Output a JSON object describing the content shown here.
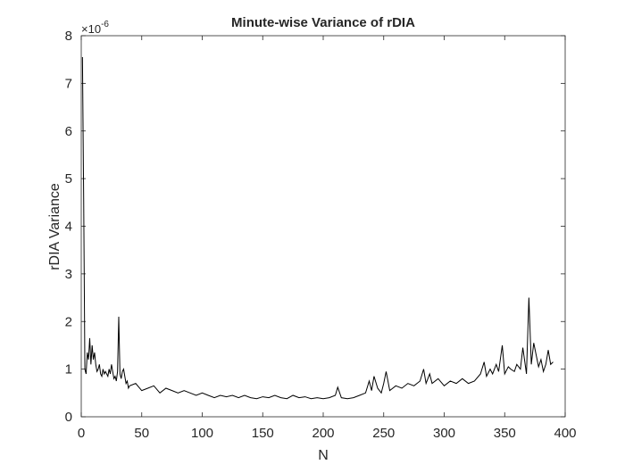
{
  "chart_data": {
    "type": "line",
    "title": "Minute-wise Variance of rDIA",
    "xlabel": "N",
    "ylabel": "rDIA Variance",
    "y_exponent_label": "×10",
    "y_exponent_power": "-6",
    "xlim": [
      0,
      400
    ],
    "ylim": [
      0,
      8
    ],
    "xticks": [
      0,
      50,
      100,
      150,
      200,
      250,
      300,
      350,
      400
    ],
    "yticks": [
      0,
      1,
      2,
      3,
      4,
      5,
      6,
      7,
      8
    ],
    "grid": false,
    "legend": "none",
    "line_color": "#000000",
    "series": [
      {
        "x": [
          1,
          2,
          3,
          4,
          5,
          6,
          7,
          8,
          9,
          10,
          11,
          12,
          13,
          14,
          15,
          16,
          17,
          18,
          19,
          20,
          21,
          22,
          23,
          24,
          25,
          26,
          27,
          28,
          29,
          30,
          31,
          32,
          33,
          34,
          35,
          36,
          37,
          38,
          39,
          40,
          45,
          50,
          55,
          60,
          65,
          70,
          75,
          80,
          85,
          90,
          95,
          100,
          105,
          110,
          115,
          120,
          125,
          130,
          135,
          140,
          145,
          150,
          155,
          160,
          165,
          170,
          175,
          180,
          185,
          190,
          195,
          200,
          205,
          210,
          212,
          215,
          220,
          225,
          230,
          235,
          238,
          240,
          242,
          245,
          248,
          250,
          252,
          255,
          260,
          265,
          270,
          275,
          280,
          283,
          285,
          288,
          290,
          295,
          300,
          305,
          310,
          315,
          320,
          325,
          330,
          333,
          335,
          338,
          340,
          343,
          345,
          348,
          350,
          353,
          355,
          358,
          360,
          363,
          365,
          368,
          370,
          372,
          374,
          376,
          378,
          380,
          382,
          384,
          386,
          388,
          390
        ],
        "y": [
          7.55,
          4.6,
          1.0,
          0.9,
          1.35,
          1.2,
          1.65,
          1.1,
          1.5,
          1.2,
          1.35,
          1.1,
          0.95,
          1.0,
          1.1,
          0.9,
          0.85,
          1.0,
          0.9,
          0.95,
          0.9,
          0.85,
          1.0,
          0.9,
          1.1,
          0.95,
          0.8,
          0.85,
          0.75,
          0.95,
          2.1,
          0.9,
          0.8,
          0.95,
          1.0,
          0.85,
          0.7,
          0.75,
          0.6,
          0.65,
          0.7,
          0.55,
          0.6,
          0.65,
          0.5,
          0.6,
          0.55,
          0.5,
          0.55,
          0.5,
          0.45,
          0.5,
          0.45,
          0.4,
          0.45,
          0.42,
          0.45,
          0.4,
          0.45,
          0.4,
          0.38,
          0.42,
          0.4,
          0.45,
          0.4,
          0.38,
          0.45,
          0.4,
          0.42,
          0.38,
          0.4,
          0.38,
          0.4,
          0.45,
          0.62,
          0.4,
          0.38,
          0.4,
          0.45,
          0.5,
          0.75,
          0.55,
          0.85,
          0.6,
          0.5,
          0.7,
          0.95,
          0.55,
          0.65,
          0.6,
          0.7,
          0.65,
          0.75,
          1.0,
          0.7,
          0.9,
          0.7,
          0.8,
          0.65,
          0.75,
          0.7,
          0.8,
          0.7,
          0.75,
          0.9,
          1.15,
          0.85,
          1.0,
          0.9,
          1.1,
          0.95,
          1.5,
          0.9,
          1.05,
          1.0,
          0.95,
          1.1,
          1.0,
          1.45,
          0.9,
          2.5,
          1.1,
          1.55,
          1.3,
          1.05,
          1.2,
          0.95,
          1.1,
          1.4,
          1.1,
          1.15
        ]
      }
    ]
  }
}
